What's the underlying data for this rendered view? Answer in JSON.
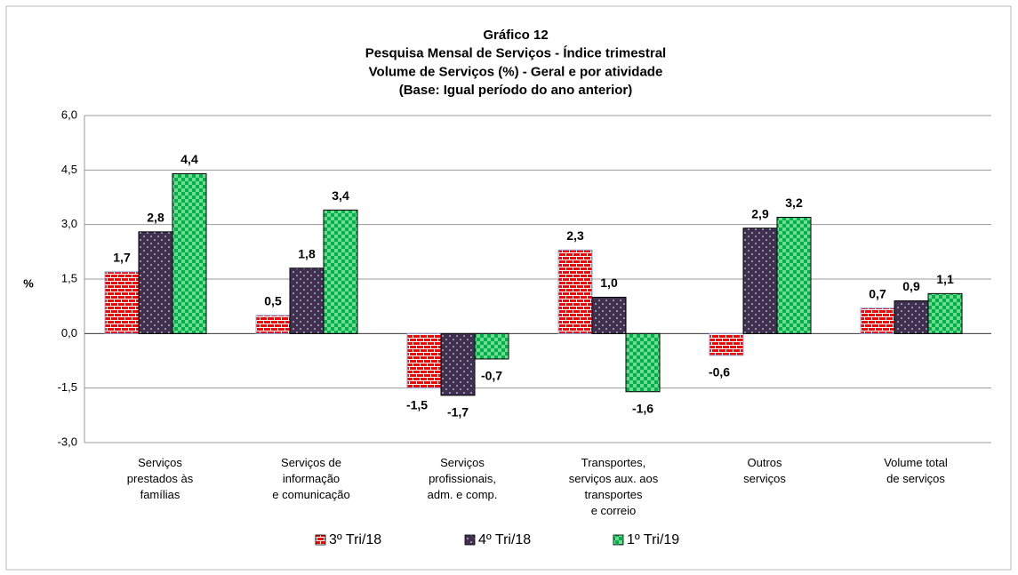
{
  "chart_data": {
    "type": "bar",
    "title": [
      "Gráfico 12",
      "Pesquisa Mensal de Serviços  - Índice trimestral",
      "Volume de Serviços (%) - Geral e por atividade",
      "(Base: Igual período do ano anterior)"
    ],
    "ylabel": "%",
    "categories": [
      "Serviços\nprestados às\nfamílias",
      "Serviços de\ninformação\ne comunicação",
      "Serviços\nprofissionais,\nadm. e comp.",
      "Transportes,\nserviços aux. aos\ntransportes\ne correio",
      "Outros\nserviços",
      "Volume total\nde serviços"
    ],
    "series": [
      {
        "name": "3º Tri/18",
        "color": "#ff0000",
        "values": [
          1.7,
          0.5,
          -1.5,
          2.3,
          -0.6,
          0.7
        ],
        "value_labels": [
          "1,7",
          "0,5",
          "-1,5",
          "2,3",
          "-0,6",
          "0,7"
        ]
      },
      {
        "name": "4º Tri/18",
        "color": "#403152",
        "values": [
          2.8,
          1.8,
          -1.7,
          1.0,
          2.9,
          0.9
        ],
        "value_labels": [
          "2,8",
          "1,8",
          "-1,7",
          "1,0",
          "2,9",
          "0,9"
        ]
      },
      {
        "name": "1º Tri/19",
        "color": "#00b050",
        "values": [
          4.4,
          3.4,
          -0.7,
          -1.6,
          3.2,
          1.1
        ],
        "value_labels": [
          "4,4",
          "3,4",
          "-0,7",
          "-1,6",
          "3,2",
          "1,1"
        ]
      }
    ],
    "ylim": [
      -3,
      6
    ],
    "yticks": [
      {
        "value": -3,
        "label": "-3,0"
      },
      {
        "value": -1.5,
        "label": "-1,5"
      },
      {
        "value": 0,
        "label": "0,0"
      },
      {
        "value": 1.5,
        "label": "1,5"
      },
      {
        "value": 3,
        "label": "3,0"
      },
      {
        "value": 4.5,
        "label": "4,5"
      },
      {
        "value": 6,
        "label": "6,0"
      }
    ],
    "grid": true,
    "legend": "bottom"
  }
}
